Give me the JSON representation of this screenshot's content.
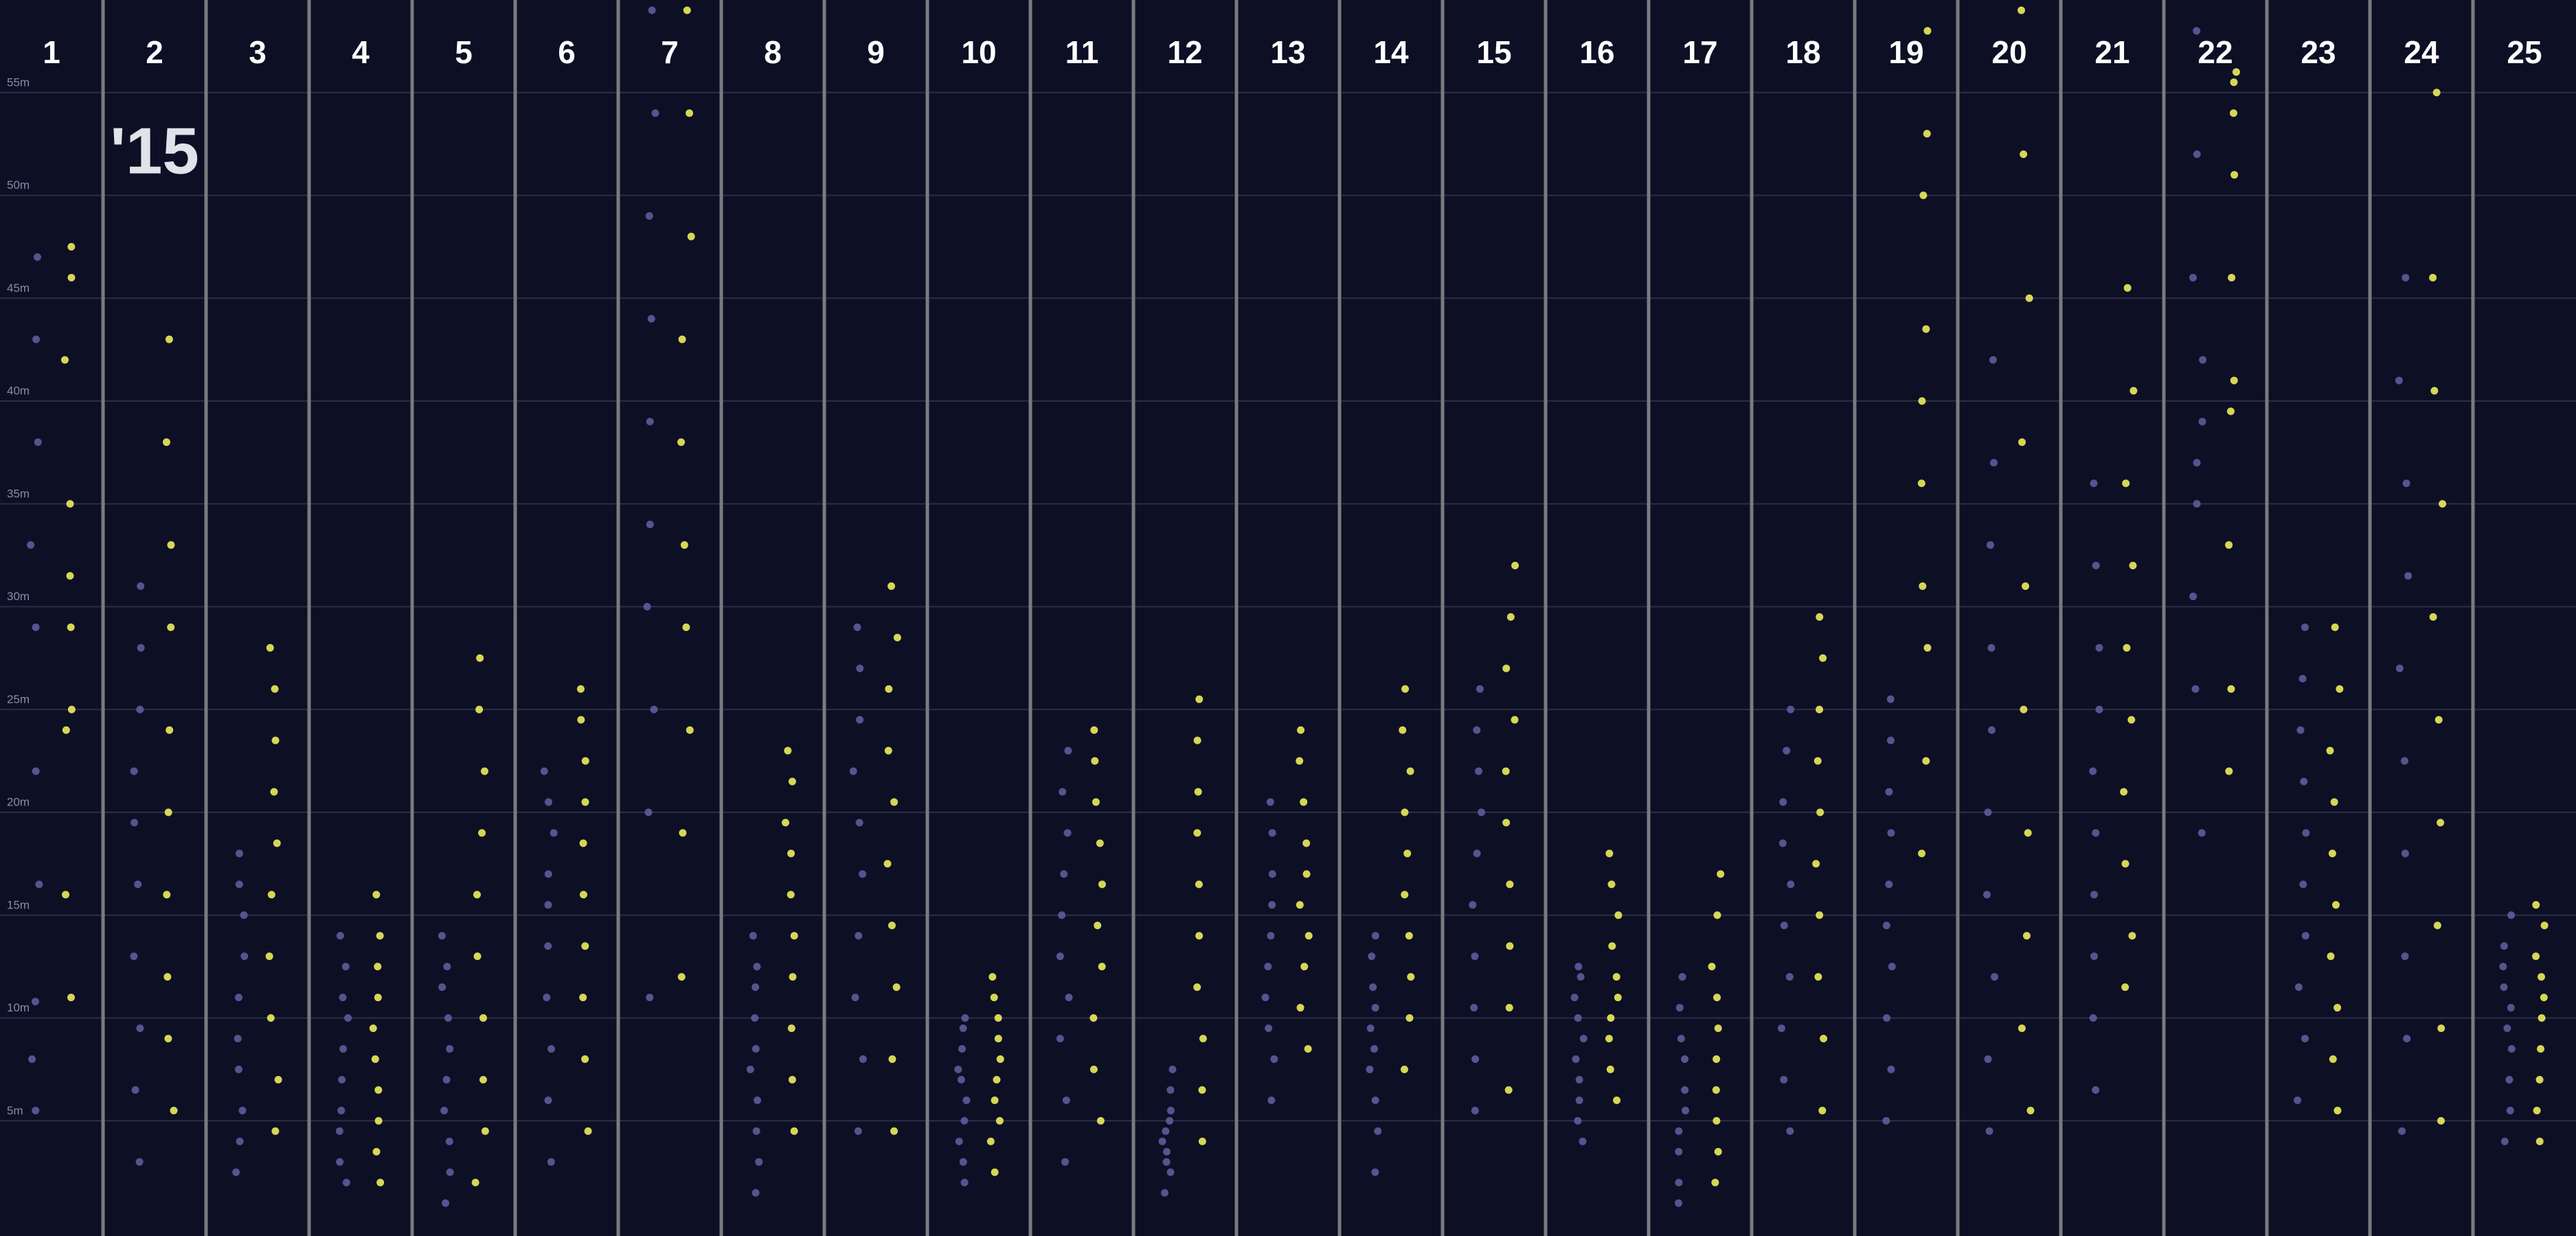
{
  "chart_data": {
    "type": "strip",
    "annotation": "'15",
    "categories": [
      "1",
      "2",
      "3",
      "4",
      "5",
      "6",
      "7",
      "8",
      "9",
      "10",
      "11",
      "12",
      "13",
      "14",
      "15",
      "16",
      "17",
      "18",
      "19",
      "20",
      "21",
      "22",
      "23",
      "24",
      "25"
    ],
    "ylim": [
      -0.6,
      59.5
    ],
    "yticks": [
      {
        "value": 5,
        "label": "5m"
      },
      {
        "value": 10,
        "label": "10m"
      },
      {
        "value": 15,
        "label": "15m"
      },
      {
        "value": 20,
        "label": "20m"
      },
      {
        "value": 25,
        "label": "25m"
      },
      {
        "value": 30,
        "label": "30m"
      },
      {
        "value": 35,
        "label": "35m"
      },
      {
        "value": 40,
        "label": "40m"
      },
      {
        "value": 45,
        "label": "45m"
      },
      {
        "value": 50,
        "label": "50m"
      },
      {
        "value": 55,
        "label": "55m"
      }
    ],
    "grid": true,
    "series": [
      {
        "color": "#5e5b9c",
        "values": [
          [
            5.5,
            8,
            10.8,
            16.5,
            22,
            29,
            33,
            38,
            43,
            47
          ],
          [
            3,
            6.5,
            9.5,
            13,
            16.5,
            19.5,
            22,
            25,
            28,
            31
          ],
          [
            2.5,
            4,
            5.5,
            7.5,
            9,
            11,
            13,
            15,
            16.5,
            18
          ],
          [
            2,
            3,
            4.5,
            5.5,
            7,
            8.5,
            10,
            11,
            12.5,
            14
          ],
          [
            1,
            2.5,
            4,
            5.5,
            7,
            8.5,
            10,
            11.5,
            12.5,
            14
          ],
          [
            3,
            6,
            8.5,
            11,
            13.5,
            15.5,
            17,
            19,
            20.5,
            22
          ],
          [
            11,
            20,
            25,
            30,
            34,
            39,
            44,
            49,
            54,
            59
          ],
          [
            1.5,
            3,
            4.5,
            6,
            7.5,
            8.5,
            10,
            11.5,
            12.5,
            14
          ],
          [
            4.5,
            8,
            11,
            14,
            17,
            19.5,
            22,
            24.5,
            27,
            29
          ],
          [
            2,
            3,
            4,
            5,
            6,
            7,
            7.5,
            8.5,
            9.5,
            10
          ],
          [
            3,
            6,
            9,
            11,
            13,
            15,
            17,
            19,
            21,
            23
          ],
          [
            1.5,
            2.5,
            3,
            3.5,
            4,
            4.5,
            5,
            5.5,
            6.5,
            7.5
          ],
          [
            6,
            8,
            9.5,
            11,
            12.5,
            14,
            15.5,
            17,
            19,
            20.5
          ],
          [
            2.5,
            4.5,
            6,
            7.5,
            8.5,
            9.5,
            10.5,
            11.5,
            13,
            14
          ],
          [
            5.5,
            8,
            10.5,
            13,
            15.5,
            18,
            20,
            22,
            24,
            26
          ],
          [
            4,
            5,
            6,
            7,
            8,
            9,
            10,
            11,
            12,
            12.5
          ],
          [
            1,
            2,
            3.5,
            4.5,
            5.5,
            6.5,
            8,
            9,
            10.5,
            12
          ],
          [
            4.5,
            7,
            9.5,
            12,
            14.5,
            16.5,
            18.5,
            20.5,
            23,
            25
          ],
          [
            5,
            7.5,
            10,
            12.5,
            14.5,
            16.5,
            19,
            21,
            23.5,
            25.5
          ],
          [
            4.5,
            8,
            12,
            16,
            20,
            24,
            28,
            33,
            37,
            42
          ],
          [
            6.5,
            10,
            13,
            16,
            19,
            22,
            25,
            28,
            32,
            36
          ],
          [
            19,
            26,
            30.5,
            35,
            37,
            39,
            42,
            46,
            52,
            58
          ],
          [
            6,
            9,
            11.5,
            14,
            16.5,
            19,
            21.5,
            24,
            26.5,
            29
          ],
          [
            4.5,
            9,
            13,
            18,
            22.5,
            27,
            31.5,
            36,
            41,
            46
          ],
          [
            4,
            5.5,
            7,
            8.5,
            9.5,
            10.5,
            11.5,
            12.5,
            13.5,
            15
          ]
        ]
      },
      {
        "color": "#ecec5c",
        "values": [
          [
            11,
            16,
            24,
            25,
            29,
            31.5,
            35,
            42,
            46,
            47.5
          ],
          [
            5.5,
            9,
            12,
            16,
            20,
            24,
            29,
            33,
            38,
            43
          ],
          [
            4.5,
            7,
            10,
            13,
            16,
            18.5,
            21,
            23.5,
            26,
            28
          ],
          [
            2,
            3.5,
            5,
            6.5,
            8,
            9.5,
            11,
            12.5,
            14,
            16
          ],
          [
            2,
            4.5,
            7,
            10,
            13,
            16,
            19,
            22,
            25,
            27.5
          ],
          [
            4.5,
            8,
            11,
            13.5,
            16,
            18.5,
            20.5,
            22.5,
            24.5,
            26
          ],
          [
            12,
            19,
            24,
            29,
            33,
            38,
            43,
            48,
            54,
            59
          ],
          [
            4.5,
            7,
            9.5,
            12,
            14,
            16,
            18,
            19.5,
            21.5,
            23
          ],
          [
            4.5,
            8,
            11.5,
            14.5,
            17.5,
            20.5,
            23,
            26,
            28.5,
            31
          ],
          [
            2.5,
            4,
            5,
            6,
            7,
            8,
            9,
            10,
            11,
            12
          ],
          [
            5,
            7.5,
            10,
            12.5,
            14.5,
            16.5,
            18.5,
            20.5,
            22.5,
            24
          ],
          [
            4,
            6.5,
            9,
            11.5,
            14,
            16.5,
            19,
            21,
            23.5,
            25.5
          ],
          [
            8.5,
            10.5,
            12.5,
            14,
            15.5,
            17,
            18.5,
            20.5,
            22.5,
            24
          ],
          [
            7.5,
            10,
            12,
            14,
            16,
            18,
            20,
            22,
            24,
            26
          ],
          [
            6.5,
            10.5,
            13.5,
            16.5,
            19.5,
            22,
            24.5,
            27,
            29.5,
            32
          ],
          [
            6,
            7.5,
            9,
            10,
            11,
            12,
            13.5,
            15,
            16.5,
            18
          ],
          [
            2,
            3.5,
            5,
            6.5,
            8,
            9.5,
            11,
            12.5,
            15,
            17
          ],
          [
            5.5,
            9,
            12,
            15,
            17.5,
            20,
            22.5,
            25,
            27.5,
            29.5
          ],
          [
            18,
            22.5,
            28,
            31,
            36,
            40,
            43.5,
            50,
            53,
            58
          ],
          [
            5.5,
            9.5,
            14,
            19,
            25,
            31,
            38,
            45,
            52,
            59
          ],
          [
            11.5,
            14,
            17.5,
            21,
            24.5,
            28,
            32,
            36,
            40.5,
            45.5
          ],
          [
            22,
            26,
            33,
            39.5,
            41,
            46,
            51,
            54,
            55.5,
            56
          ],
          [
            5.5,
            8,
            10.5,
            13,
            15.5,
            18,
            20.5,
            23,
            26,
            29
          ],
          [
            5,
            9.5,
            14.5,
            19.5,
            24.5,
            29.5,
            35,
            40.5,
            46,
            55
          ],
          [
            4,
            5.5,
            7,
            8.5,
            10,
            11,
            12,
            13,
            14.5,
            15.5
          ]
        ]
      }
    ]
  }
}
